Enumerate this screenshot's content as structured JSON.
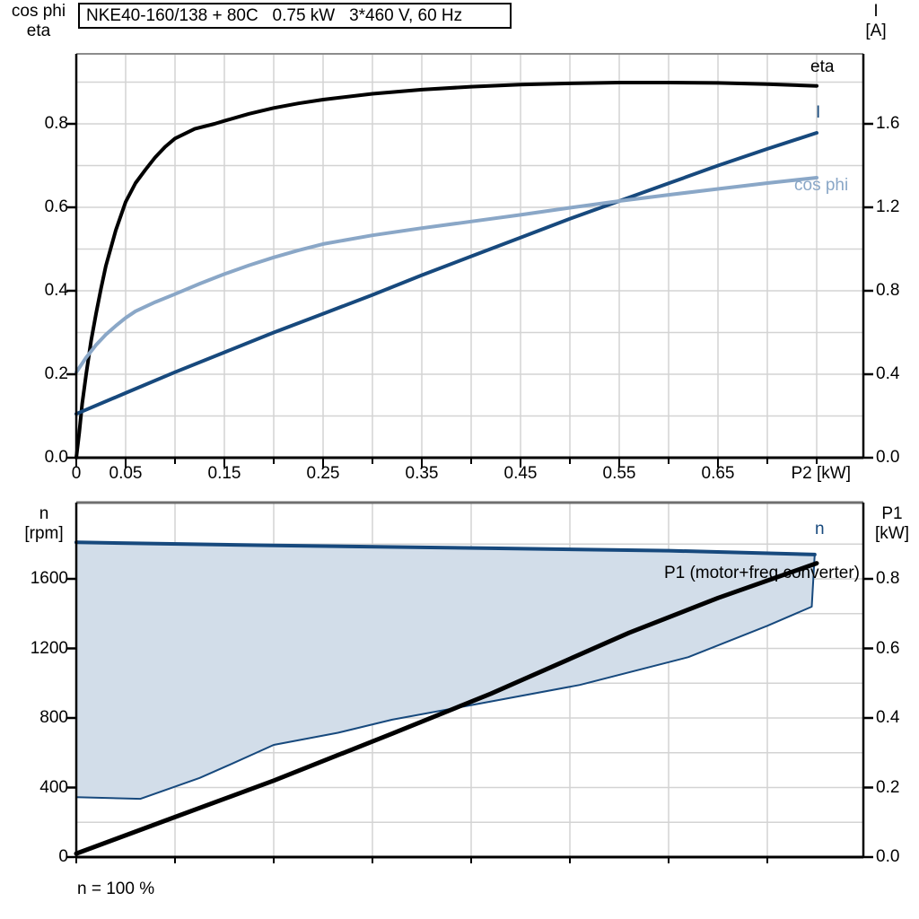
{
  "colors": {
    "black": "#000000",
    "dark_blue": "#17497d",
    "light_blue": "#8aa7c7",
    "fill_blue": "#d2dde9",
    "grid": "#d3d3d3",
    "spine_gray": "#6f6f6f"
  },
  "chart_data": [
    {
      "type": "line",
      "title": "NKE40-160/138 + 80C   0.75 kW   3*460 V, 60 Hz",
      "x_axis": {
        "label": "P2 [kW]",
        "range": [
          0,
          0.8
        ],
        "major_tick_values": [
          0,
          0.05,
          0.15,
          0.25,
          0.35,
          0.45,
          0.55,
          0.65
        ],
        "major_tick_labels": [
          "0",
          "0.05",
          "0.15",
          "0.25",
          "0.35",
          "0.45",
          "0.55",
          "0.65"
        ],
        "minor_tick_step": 0.05,
        "grid_step": 0.05
      },
      "y_left": {
        "label_line1": "cos phi",
        "label_line2": "eta",
        "range": [
          0,
          0.97
        ],
        "tick_values": [
          0,
          0.2,
          0.4,
          0.6,
          0.8
        ],
        "tick_labels": [
          "0.0",
          "0.2",
          "0.4",
          "0.6",
          "0.8"
        ],
        "grid_step": 0.1
      },
      "y_right": {
        "label_line1": "I",
        "label_line2": "[A]",
        "range": [
          0,
          1.94
        ],
        "tick_values": [
          0,
          0.4,
          0.8,
          1.2,
          1.6
        ],
        "tick_labels": [
          "0.0",
          "0.4",
          "0.8",
          "1.2",
          "1.6"
        ],
        "grid_step": 0.2
      },
      "legend_position": "end-of-curve",
      "grid": true,
      "series": [
        {
          "name": "eta",
          "axis": "left",
          "color": "black",
          "points": [
            [
              0,
              0
            ],
            [
              0.003,
              0.06
            ],
            [
              0.006,
              0.13
            ],
            [
              0.01,
              0.2
            ],
            [
              0.015,
              0.28
            ],
            [
              0.02,
              0.345
            ],
            [
              0.025,
              0.405
            ],
            [
              0.03,
              0.46
            ],
            [
              0.04,
              0.545
            ],
            [
              0.05,
              0.613
            ],
            [
              0.06,
              0.658
            ],
            [
              0.07,
              0.69
            ],
            [
              0.08,
              0.72
            ],
            [
              0.09,
              0.745
            ],
            [
              0.1,
              0.765
            ],
            [
              0.12,
              0.788
            ],
            [
              0.14,
              0.8
            ],
            [
              0.15,
              0.807
            ],
            [
              0.175,
              0.824
            ],
            [
              0.2,
              0.838
            ],
            [
              0.225,
              0.849
            ],
            [
              0.25,
              0.858
            ],
            [
              0.3,
              0.872
            ],
            [
              0.35,
              0.882
            ],
            [
              0.4,
              0.889
            ],
            [
              0.45,
              0.894
            ],
            [
              0.5,
              0.897
            ],
            [
              0.55,
              0.899
            ],
            [
              0.6,
              0.899
            ],
            [
              0.65,
              0.898
            ],
            [
              0.7,
              0.895
            ],
            [
              0.75,
              0.891
            ]
          ]
        },
        {
          "name": "I",
          "axis": "right",
          "color": "dark_blue",
          "points": [
            [
              0,
              0.21
            ],
            [
              0.05,
              0.31
            ],
            [
              0.1,
              0.41
            ],
            [
              0.15,
              0.505
            ],
            [
              0.2,
              0.6
            ],
            [
              0.25,
              0.69
            ],
            [
              0.3,
              0.78
            ],
            [
              0.35,
              0.875
            ],
            [
              0.4,
              0.965
            ],
            [
              0.45,
              1.055
            ],
            [
              0.5,
              1.145
            ],
            [
              0.55,
              1.23
            ],
            [
              0.6,
              1.315
            ],
            [
              0.65,
              1.4
            ],
            [
              0.7,
              1.48
            ],
            [
              0.75,
              1.557
            ]
          ]
        },
        {
          "name": "cos phi",
          "axis": "left",
          "color": "light_blue",
          "points": [
            [
              0,
              0.205
            ],
            [
              0.01,
              0.24
            ],
            [
              0.02,
              0.27
            ],
            [
              0.03,
              0.295
            ],
            [
              0.04,
              0.316
            ],
            [
              0.05,
              0.335
            ],
            [
              0.06,
              0.351
            ],
            [
              0.08,
              0.373
            ],
            [
              0.1,
              0.392
            ],
            [
              0.125,
              0.417
            ],
            [
              0.15,
              0.44
            ],
            [
              0.175,
              0.461
            ],
            [
              0.2,
              0.48
            ],
            [
              0.225,
              0.497
            ],
            [
              0.25,
              0.512
            ],
            [
              0.3,
              0.533
            ],
            [
              0.35,
              0.55
            ],
            [
              0.4,
              0.566
            ],
            [
              0.45,
              0.582
            ],
            [
              0.5,
              0.599
            ],
            [
              0.55,
              0.615
            ],
            [
              0.6,
              0.63
            ],
            [
              0.65,
              0.644
            ],
            [
              0.7,
              0.658
            ],
            [
              0.75,
              0.671
            ]
          ]
        }
      ]
    },
    {
      "type": "area",
      "title": "",
      "x_axis": {
        "label": "",
        "range": [
          0,
          0.8
        ],
        "grid_step": 0.1,
        "minor_tick_step": 0.1
      },
      "y_left": {
        "label_line1": "n",
        "label_line2": "[rpm]",
        "range": [
          0,
          2040
        ],
        "tick_values": [
          0,
          400,
          800,
          1200,
          1600
        ],
        "tick_labels": [
          "0",
          "400",
          "800",
          "1200",
          "1600"
        ],
        "grid_step": 200
      },
      "y_right": {
        "label_line1": "P1",
        "label_line2": "[kW]",
        "range": [
          0,
          1.02
        ],
        "tick_values": [
          0,
          0.2,
          0.4,
          0.6,
          0.8
        ],
        "tick_labels": [
          "0.0",
          "0.2",
          "0.4",
          "0.6",
          "0.8"
        ],
        "grid_step": 0.1
      },
      "grid": true,
      "speed_envelope": {
        "name": "n",
        "axis": "left",
        "color": "dark_blue",
        "fill": "fill_blue",
        "upper": [
          [
            0,
            1810
          ],
          [
            0.2,
            1792
          ],
          [
            0.42,
            1776
          ],
          [
            0.6,
            1762
          ],
          [
            0.748,
            1740
          ]
        ],
        "lower": [
          [
            0,
            345
          ],
          [
            0.065,
            335
          ],
          [
            0.125,
            455
          ],
          [
            0.155,
            530
          ],
          [
            0.2,
            645
          ],
          [
            0.265,
            715
          ],
          [
            0.32,
            790
          ],
          [
            0.42,
            895
          ],
          [
            0.51,
            990
          ],
          [
            0.62,
            1150
          ],
          [
            0.7,
            1330
          ],
          [
            0.745,
            1440
          ]
        ]
      },
      "p1_series": {
        "name": "P1 (motor+freq.converter)",
        "axis": "right",
        "color": "black",
        "points": [
          [
            0,
            0.01
          ],
          [
            0.1,
            0.115
          ],
          [
            0.2,
            0.22
          ],
          [
            0.32,
            0.355
          ],
          [
            0.42,
            0.47
          ],
          [
            0.56,
            0.645
          ],
          [
            0.65,
            0.745
          ],
          [
            0.75,
            0.845
          ]
        ]
      },
      "footnote": "n = 100 %"
    }
  ]
}
